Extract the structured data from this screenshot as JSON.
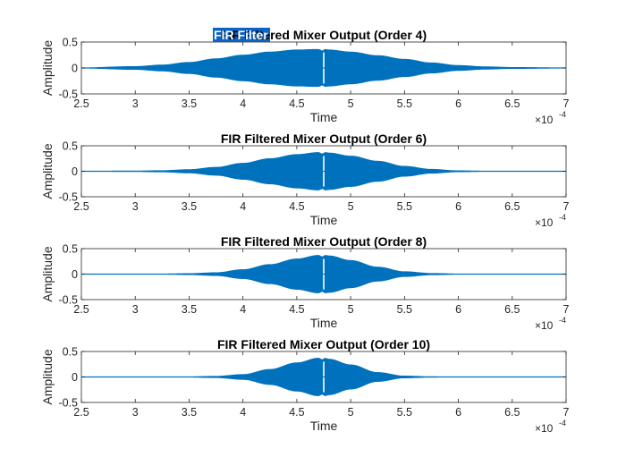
{
  "figure": {
    "background": "#ffffff",
    "axis_color": "#262626",
    "signal_color": "#0072bd",
    "selection_color": "#0a64c8",
    "selected_title_text": "FIR Filter"
  },
  "chart_data": [
    {
      "type": "area",
      "title": "FIR Filtered Mixer Output (Order 4)",
      "xlabel": "Time",
      "ylabel": "Amplitude",
      "x_exponent_label": "×10",
      "x_exponent": "-4",
      "xlim": [
        2.5,
        7
      ],
      "ylim": [
        -0.5,
        0.5
      ],
      "x_ticks": [
        2.5,
        3,
        3.5,
        4,
        4.5,
        5,
        5.5,
        6,
        6.5,
        7
      ],
      "x_tick_labels": [
        "2.5",
        "3",
        "3.5",
        "4",
        "4.5",
        "5",
        "5.5",
        "6",
        "6.5",
        "7"
      ],
      "y_ticks": [
        0.5,
        0,
        -0.5
      ],
      "y_tick_labels": [
        "0.5",
        "0",
        "-0.5"
      ],
      "series": [
        {
          "x": [
            2.5,
            3,
            3.25,
            3.5,
            3.75,
            4,
            4.25,
            4.5,
            4.7,
            4.74,
            4.76,
            4.8,
            5,
            5.25,
            5.5,
            5.75,
            6,
            6.25,
            6.5,
            7
          ],
          "envelope": [
            0.005,
            0.03,
            0.06,
            0.11,
            0.18,
            0.25,
            0.31,
            0.35,
            0.36,
            0.33,
            0.36,
            0.35,
            0.31,
            0.24,
            0.17,
            0.1,
            0.05,
            0.025,
            0.012,
            0.005
          ]
        }
      ]
    },
    {
      "type": "area",
      "title": "FIR Filtered Mixer Output (Order 6)",
      "xlabel": "Time",
      "ylabel": "Amplitude",
      "x_exponent_label": "×10",
      "x_exponent": "-4",
      "xlim": [
        2.5,
        7
      ],
      "ylim": [
        -0.5,
        0.5
      ],
      "x_ticks": [
        2.5,
        3,
        3.5,
        4,
        4.5,
        5,
        5.5,
        6,
        6.5,
        7
      ],
      "x_tick_labels": [
        "2.5",
        "3",
        "3.5",
        "4",
        "4.5",
        "5",
        "5.5",
        "6",
        "6.5",
        "7"
      ],
      "y_ticks": [
        0.5,
        0,
        -0.5
      ],
      "y_tick_labels": [
        "0.5",
        "0",
        "-0.5"
      ],
      "series": [
        {
          "x": [
            2.5,
            3,
            3.25,
            3.5,
            3.75,
            4,
            4.25,
            4.5,
            4.7,
            4.74,
            4.76,
            4.8,
            5,
            5.25,
            5.5,
            5.75,
            6,
            6.25,
            6.5,
            7
          ],
          "envelope": [
            0.005,
            0.008,
            0.015,
            0.035,
            0.08,
            0.16,
            0.25,
            0.33,
            0.37,
            0.34,
            0.37,
            0.36,
            0.3,
            0.2,
            0.1,
            0.04,
            0.012,
            0.006,
            0.005,
            0.005
          ]
        }
      ]
    },
    {
      "type": "area",
      "title": "FIR Filtered Mixer Output (Order 8)",
      "xlabel": "Time",
      "ylabel": "Amplitude",
      "x_exponent_label": "×10",
      "x_exponent": "-4",
      "xlim": [
        2.5,
        7
      ],
      "ylim": [
        -0.5,
        0.5
      ],
      "x_ticks": [
        2.5,
        3,
        3.5,
        4,
        4.5,
        5,
        5.5,
        6,
        6.5,
        7
      ],
      "x_tick_labels": [
        "2.5",
        "3",
        "3.5",
        "4",
        "4.5",
        "5",
        "5.5",
        "6",
        "6.5",
        "7"
      ],
      "y_ticks": [
        0.5,
        0,
        -0.5
      ],
      "y_tick_labels": [
        "0.5",
        "0",
        "-0.5"
      ],
      "series": [
        {
          "x": [
            2.5,
            3,
            3.25,
            3.5,
            3.75,
            4,
            4.25,
            4.5,
            4.7,
            4.74,
            4.76,
            4.8,
            5,
            5.25,
            5.5,
            5.75,
            6,
            6.25,
            6.5,
            7
          ],
          "envelope": [
            0.005,
            0.005,
            0.006,
            0.012,
            0.03,
            0.09,
            0.19,
            0.3,
            0.37,
            0.34,
            0.37,
            0.36,
            0.27,
            0.14,
            0.05,
            0.015,
            0.006,
            0.005,
            0.005,
            0.005
          ]
        }
      ]
    },
    {
      "type": "area",
      "title": "FIR Filtered Mixer Output (Order 10)",
      "xlabel": "Time",
      "ylabel": "Amplitude",
      "x_exponent_label": "×10",
      "x_exponent": "-4",
      "xlim": [
        2.5,
        7
      ],
      "ylim": [
        -0.5,
        0.5
      ],
      "x_ticks": [
        2.5,
        3,
        3.5,
        4,
        4.5,
        5,
        5.5,
        6,
        6.5,
        7
      ],
      "x_tick_labels": [
        "2.5",
        "3",
        "3.5",
        "4",
        "4.5",
        "5",
        "5.5",
        "6",
        "6.5",
        "7"
      ],
      "y_ticks": [
        0.5,
        0,
        -0.5
      ],
      "y_tick_labels": [
        "0.5",
        "0",
        "-0.5"
      ],
      "series": [
        {
          "x": [
            2.5,
            3,
            3.25,
            3.5,
            3.75,
            4,
            4.25,
            4.5,
            4.7,
            4.74,
            4.76,
            4.8,
            5,
            5.25,
            5.5,
            5.75,
            6,
            6.25,
            6.5,
            7
          ],
          "envelope": [
            0.005,
            0.005,
            0.005,
            0.006,
            0.015,
            0.05,
            0.15,
            0.28,
            0.37,
            0.34,
            0.37,
            0.35,
            0.24,
            0.09,
            0.02,
            0.007,
            0.005,
            0.005,
            0.005,
            0.005
          ]
        }
      ]
    }
  ]
}
